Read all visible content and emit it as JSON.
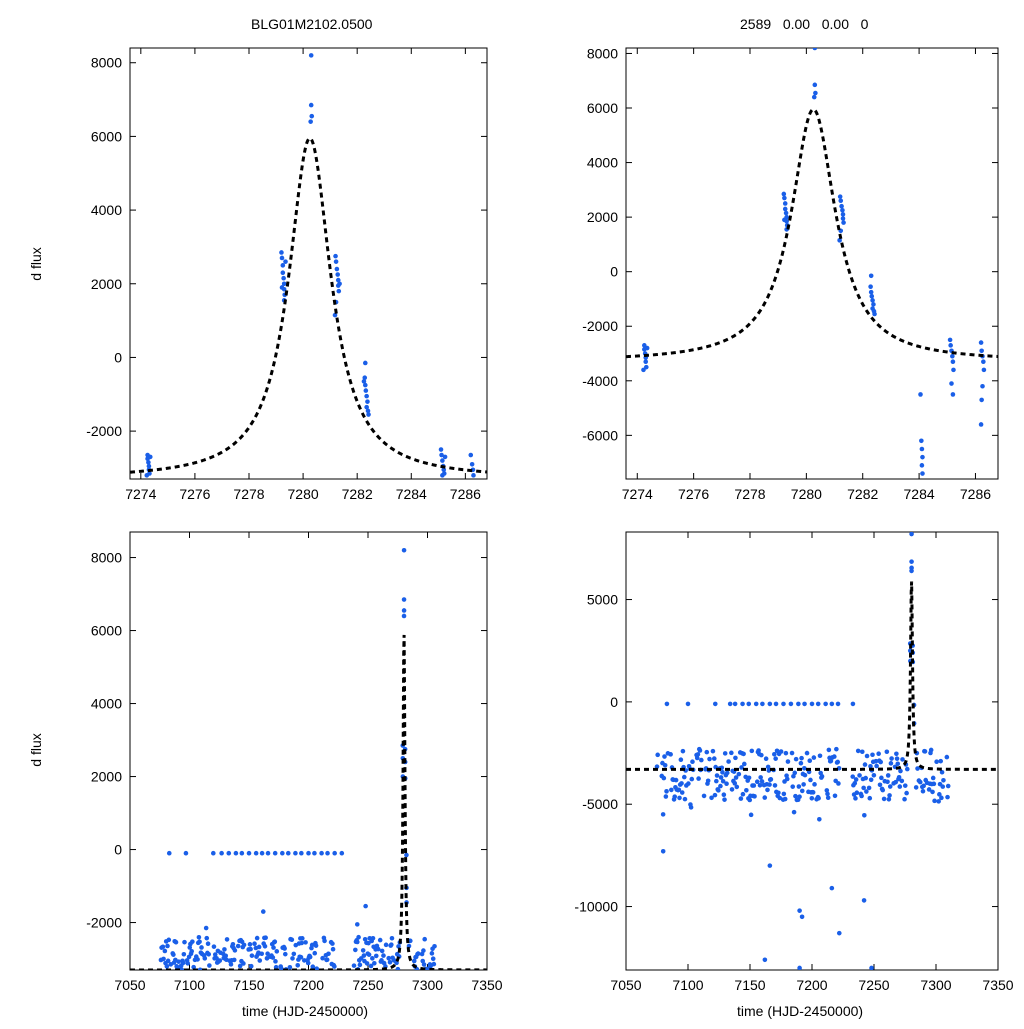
{
  "figure": {
    "ylabel": "d flux",
    "xlabel": "time (HJD-2450000)"
  },
  "colors": {
    "points": "#1a5fe8",
    "model": "#000000",
    "axes": "#000000"
  },
  "chart_data": [
    {
      "type": "scatter",
      "panel": "top-left",
      "title": "BLG01M2102.0500",
      "xlabel": "",
      "ylabel": "d flux",
      "xlim": [
        7273.6,
        7286.8
      ],
      "ylim": [
        -3300,
        8400
      ],
      "xticks": [
        7274,
        7276,
        7278,
        7280,
        7282,
        7284,
        7286
      ],
      "yticks": [
        -2000,
        0,
        2000,
        4000,
        6000,
        8000
      ],
      "model": {
        "t0": 7280.25,
        "peak": 5950,
        "base": -3300,
        "width": 0.95
      },
      "series": [
        {
          "name": "data",
          "points": [
            [
              7274.25,
              -2650
            ],
            [
              7274.25,
              -2750
            ],
            [
              7274.28,
              -2850
            ],
            [
              7274.3,
              -2950
            ],
            [
              7274.3,
              -3050
            ],
            [
              7274.32,
              -3150
            ],
            [
              7274.22,
              -3200
            ],
            [
              7274.35,
              -2700
            ],
            [
              7279.2,
              2850
            ],
            [
              7279.22,
              2700
            ],
            [
              7279.25,
              2500
            ],
            [
              7279.25,
              2300
            ],
            [
              7279.28,
              2150
            ],
            [
              7279.3,
              2000
            ],
            [
              7279.3,
              1850
            ],
            [
              7279.32,
              1700
            ],
            [
              7279.3,
              1550
            ],
            [
              7279.22,
              1900
            ],
            [
              7279.35,
              2600
            ],
            [
              7280.3,
              8200
            ],
            [
              7280.3,
              6850
            ],
            [
              7280.32,
              6550
            ],
            [
              7280.28,
              6400
            ],
            [
              7281.2,
              2750
            ],
            [
              7281.22,
              2600
            ],
            [
              7281.25,
              2400
            ],
            [
              7281.28,
              2250
            ],
            [
              7281.3,
              2100
            ],
            [
              7281.3,
              1950
            ],
            [
              7281.32,
              1800
            ],
            [
              7281.22,
              1500
            ],
            [
              7281.18,
              1150
            ],
            [
              7281.35,
              2000
            ],
            [
              7282.3,
              -150
            ],
            [
              7282.28,
              -550
            ],
            [
              7282.3,
              -750
            ],
            [
              7282.32,
              -900
            ],
            [
              7282.35,
              -1050
            ],
            [
              7282.38,
              -1200
            ],
            [
              7282.35,
              -1350
            ],
            [
              7282.4,
              -1450
            ],
            [
              7282.42,
              -1550
            ],
            [
              7282.25,
              -650
            ],
            [
              7285.1,
              -2500
            ],
            [
              7285.12,
              -2650
            ],
            [
              7285.15,
              -2800
            ],
            [
              7285.18,
              -2950
            ],
            [
              7285.2,
              -3050
            ],
            [
              7285.22,
              -3150
            ],
            [
              7285.15,
              -3200
            ],
            [
              7285.25,
              -2700
            ],
            [
              7286.2,
              -2650
            ],
            [
              7286.25,
              -2900
            ],
            [
              7286.28,
              -3050
            ],
            [
              7286.3,
              -3200
            ]
          ]
        }
      ]
    },
    {
      "type": "scatter",
      "panel": "top-right",
      "title": "2589   0.00   0.00   0",
      "xlabel": "",
      "ylabel": "",
      "xlim": [
        7273.6,
        7286.8
      ],
      "ylim": [
        -7600,
        8200
      ],
      "xticks": [
        7274,
        7276,
        7278,
        7280,
        7282,
        7284,
        7286
      ],
      "yticks": [
        -6000,
        -4000,
        -2000,
        0,
        2000,
        4000,
        6000,
        8000
      ],
      "model": {
        "t0": 7280.25,
        "peak": 5950,
        "base": -3300,
        "width": 0.95
      },
      "series": [
        {
          "name": "data",
          "points": [
            [
              7274.25,
              -2700
            ],
            [
              7274.25,
              -2850
            ],
            [
              7274.28,
              -3000
            ],
            [
              7274.3,
              -3150
            ],
            [
              7274.3,
              -3300
            ],
            [
              7274.32,
              -3500
            ],
            [
              7274.22,
              -3600
            ],
            [
              7274.35,
              -2800
            ],
            [
              7279.2,
              2850
            ],
            [
              7279.22,
              2700
            ],
            [
              7279.25,
              2500
            ],
            [
              7279.25,
              2300
            ],
            [
              7279.28,
              2150
            ],
            [
              7279.3,
              2000
            ],
            [
              7279.3,
              1850
            ],
            [
              7279.32,
              1700
            ],
            [
              7279.3,
              1550
            ],
            [
              7279.22,
              1900
            ],
            [
              7280.3,
              8200
            ],
            [
              7280.3,
              6850
            ],
            [
              7280.32,
              6550
            ],
            [
              7280.28,
              6400
            ],
            [
              7281.2,
              2750
            ],
            [
              7281.22,
              2600
            ],
            [
              7281.25,
              2400
            ],
            [
              7281.28,
              2250
            ],
            [
              7281.3,
              2100
            ],
            [
              7281.3,
              1950
            ],
            [
              7281.32,
              1800
            ],
            [
              7281.22,
              1500
            ],
            [
              7281.18,
              1150
            ],
            [
              7282.3,
              -150
            ],
            [
              7282.28,
              -550
            ],
            [
              7282.3,
              -750
            ],
            [
              7282.32,
              -900
            ],
            [
              7282.35,
              -1050
            ],
            [
              7282.38,
              -1200
            ],
            [
              7282.35,
              -1350
            ],
            [
              7282.4,
              -1450
            ],
            [
              7282.42,
              -1550
            ],
            [
              7284.05,
              -4500
            ],
            [
              7284.08,
              -6200
            ],
            [
              7284.1,
              -6500
            ],
            [
              7284.12,
              -6800
            ],
            [
              7284.1,
              -7100
            ],
            [
              7284.12,
              -7400
            ],
            [
              7285.1,
              -2500
            ],
            [
              7285.12,
              -2700
            ],
            [
              7285.15,
              -2900
            ],
            [
              7285.18,
              -3100
            ],
            [
              7285.2,
              -3300
            ],
            [
              7285.22,
              -3600
            ],
            [
              7285.15,
              -4100
            ],
            [
              7285.2,
              -4500
            ],
            [
              7286.2,
              -2600
            ],
            [
              7286.22,
              -2900
            ],
            [
              7286.25,
              -3100
            ],
            [
              7286.28,
              -3300
            ],
            [
              7286.3,
              -3600
            ],
            [
              7286.25,
              -4200
            ],
            [
              7286.22,
              -4700
            ],
            [
              7286.2,
              -5600
            ]
          ]
        }
      ]
    },
    {
      "type": "scatter",
      "panel": "bottom-left",
      "title": "",
      "xlabel": "time (HJD-2450000)",
      "ylabel": "d flux",
      "xlim": [
        7050,
        7350
      ],
      "ylim": [
        -3300,
        8700
      ],
      "xticks": [
        7050,
        7100,
        7150,
        7200,
        7250,
        7300,
        7350
      ],
      "yticks": [
        -2000,
        0,
        2000,
        4000,
        6000,
        8000
      ],
      "model": {
        "t0": 7280.25,
        "peak": 5950,
        "base": -3300,
        "width": 0.95
      },
      "flat_points": {
        "value": -100,
        "t": [
          7083,
          7097,
          7120,
          7127,
          7133,
          7139,
          7144,
          7150,
          7156,
          7161,
          7166,
          7172,
          7178,
          7183,
          7189,
          7194,
          7200,
          7205,
          7211,
          7216,
          7222,
          7228
        ]
      },
      "scatter_spec": {
        "t_start": 7076,
        "t_end": 7306,
        "gap": [
          7222,
          7238
        ],
        "base_min": -3300,
        "base_max": -2400,
        "outliers": [
          [
            7162,
            -1700
          ],
          [
            7248,
            -1550
          ],
          [
            7241,
            -2050
          ],
          [
            7114,
            -2150
          ]
        ]
      },
      "series": [
        {
          "name": "peak",
          "points": [
            [
              7280.3,
              8200
            ],
            [
              7280.3,
              6850
            ],
            [
              7280.32,
              6550
            ],
            [
              7280.28,
              6400
            ],
            [
              7279.2,
              2850
            ],
            [
              7279.25,
              2500
            ],
            [
              7279.3,
              2000
            ],
            [
              7281.2,
              2750
            ],
            [
              7281.25,
              2400
            ],
            [
              7281.3,
              1950
            ],
            [
              7282.3,
              -150
            ],
            [
              7282.35,
              -1050
            ],
            [
              7282.4,
              -1450
            ]
          ]
        }
      ]
    },
    {
      "type": "scatter",
      "panel": "bottom-right",
      "title": "",
      "xlabel": "time (HJD-2450000)",
      "ylabel": "",
      "xlim": [
        7050,
        7350
      ],
      "ylim": [
        -13100,
        8300
      ],
      "xticks": [
        7050,
        7100,
        7150,
        7200,
        7250,
        7300,
        7350
      ],
      "yticks": [
        -10000,
        -5000,
        0,
        5000
      ],
      "model": {
        "t0": 7280.25,
        "peak": 5950,
        "base": -3300,
        "width": 0.95
      },
      "flat_points": {
        "value": -100,
        "t": [
          7083,
          7100,
          7122,
          7134,
          7138,
          7144,
          7149,
          7155,
          7160,
          7166,
          7171,
          7177,
          7183,
          7189,
          7194,
          7200,
          7205,
          7211,
          7216,
          7221,
          7233
        ]
      },
      "scatter_spec": {
        "t_start": 7075,
        "t_end": 7310,
        "gap": [
          7222,
          7232
        ],
        "base_min": -4800,
        "base_max": -2300,
        "outliers": [
          [
            7190,
            -10200
          ],
          [
            7192,
            -10500
          ],
          [
            7222,
            -11300
          ],
          [
            7242,
            -9700
          ],
          [
            7162,
            -12600
          ],
          [
            7190,
            -13000
          ],
          [
            7248,
            -13000
          ],
          [
            7166,
            -8000
          ],
          [
            7216,
            -9100
          ],
          [
            7080,
            -7300
          ]
        ]
      },
      "series": [
        {
          "name": "peak",
          "points": [
            [
              7280.3,
              8200
            ],
            [
              7280.3,
              6850
            ],
            [
              7280.32,
              6550
            ],
            [
              7280.28,
              6400
            ],
            [
              7279.2,
              2850
            ],
            [
              7279.25,
              2500
            ],
            [
              7279.3,
              2000
            ],
            [
              7281.2,
              2750
            ],
            [
              7281.25,
              2400
            ],
            [
              7281.3,
              1950
            ],
            [
              7282.3,
              -150
            ],
            [
              7282.35,
              -1050
            ]
          ]
        }
      ]
    }
  ]
}
